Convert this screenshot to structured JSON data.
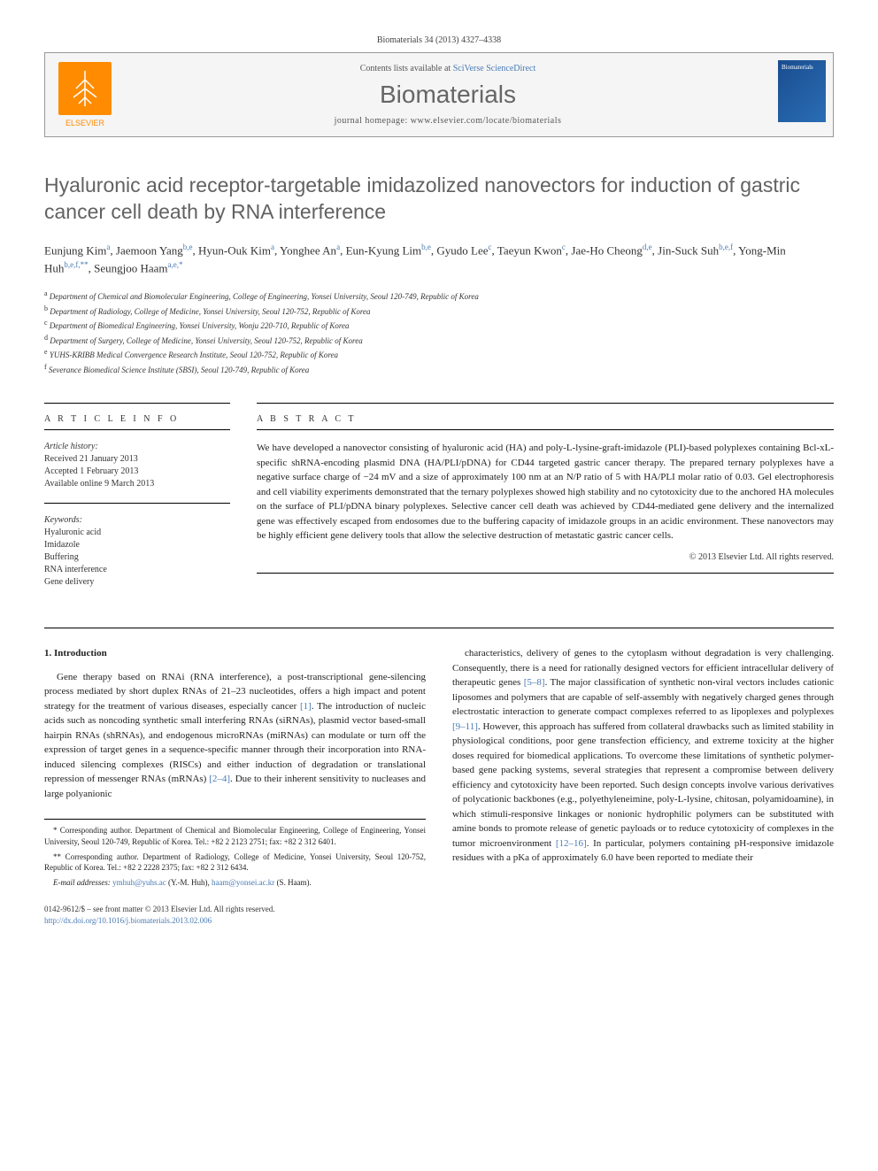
{
  "citation": "Biomaterials 34 (2013) 4327–4338",
  "header": {
    "contents_prefix": "Contents lists available at ",
    "contents_link": "SciVerse ScienceDirect",
    "journal": "Biomaterials",
    "homepage_prefix": "journal homepage: ",
    "homepage": "www.elsevier.com/locate/biomaterials",
    "elsevier": "ELSEVIER",
    "thumb_label": "Biomaterials"
  },
  "title": "Hyaluronic acid receptor-targetable imidazolized nanovectors for induction of gastric cancer cell death by RNA interference",
  "authors_html": "Eunjung Kim<sup>a</sup>, Jaemoon Yang<sup>b,e</sup>, Hyun-Ouk Kim<sup>a</sup>, Yonghee An<sup>a</sup>, Eun-Kyung Lim<sup>b,e</sup>, Gyudo Lee<sup>c</sup>, Taeyun Kwon<sup>c</sup>, Jae-Ho Cheong<sup>d,e</sup>, Jin-Suck Suh<sup>b,e,f</sup>, Yong-Min Huh<sup>b,e,f,**</sup>, Seungjoo Haam<sup>a,e,*</sup>",
  "affiliations": [
    {
      "sup": "a",
      "text": "Department of Chemical and Biomolecular Engineering, College of Engineering, Yonsei University, Seoul 120-749, Republic of Korea"
    },
    {
      "sup": "b",
      "text": "Department of Radiology, College of Medicine, Yonsei University, Seoul 120-752, Republic of Korea"
    },
    {
      "sup": "c",
      "text": "Department of Biomedical Engineering, Yonsei University, Wonju 220-710, Republic of Korea"
    },
    {
      "sup": "d",
      "text": "Department of Surgery, College of Medicine, Yonsei University, Seoul 120-752, Republic of Korea"
    },
    {
      "sup": "e",
      "text": "YUHS-KRIBB Medical Convergence Research Institute, Seoul 120-752, Republic of Korea"
    },
    {
      "sup": "f",
      "text": "Severance Biomedical Science Institute (SBSI), Seoul 120-749, Republic of Korea"
    }
  ],
  "article_info": {
    "heading": "A R T I C L E   I N F O",
    "history_label": "Article history:",
    "received": "Received 21 January 2013",
    "accepted": "Accepted 1 February 2013",
    "online": "Available online 9 March 2013",
    "keywords_label": "Keywords:",
    "keywords": [
      "Hyaluronic acid",
      "Imidazole",
      "Buffering",
      "RNA interference",
      "Gene delivery"
    ]
  },
  "abstract": {
    "heading": "A B S T R A C T",
    "text": "We have developed a nanovector consisting of hyaluronic acid (HA) and poly-L-lysine-graft-imidazole (PLI)-based polyplexes containing Bcl-xL-specific shRNA-encoding plasmid DNA (HA/PLI/pDNA) for CD44 targeted gastric cancer therapy. The prepared ternary polyplexes have a negative surface charge of −24 mV and a size of approximately 100 nm at an N/P ratio of 5 with HA/PLI molar ratio of 0.03. Gel electrophoresis and cell viability experiments demonstrated that the ternary polyplexes showed high stability and no cytotoxicity due to the anchored HA molecules on the surface of PLI/pDNA binary polyplexes. Selective cancer cell death was achieved by CD44-mediated gene delivery and the internalized gene was effectively escaped from endosomes due to the buffering capacity of imidazole groups in an acidic environment. These nanovectors may be highly efficient gene delivery tools that allow the selective destruction of metastatic gastric cancer cells.",
    "copyright": "© 2013 Elsevier Ltd. All rights reserved."
  },
  "body": {
    "section_num": "1.",
    "section_title": "Introduction",
    "col1": "Gene therapy based on RNAi (RNA interference), a post-transcriptional gene-silencing process mediated by short duplex RNAs of 21–23 nucleotides, offers a high impact and potent strategy for the treatment of various diseases, especially cancer [1]. The introduction of nucleic acids such as noncoding synthetic small interfering RNAs (siRNAs), plasmid vector based-small hairpin RNAs (shRNAs), and endogenous microRNAs (miRNAs) can modulate or turn off the expression of target genes in a sequence-specific manner through their incorporation into RNA-induced silencing complexes (RISCs) and either induction of degradation or translational repression of messenger RNAs (mRNAs) [2–4]. Due to their inherent sensitivity to nucleases and large polyanionic",
    "col2": "characteristics, delivery of genes to the cytoplasm without degradation is very challenging. Consequently, there is a need for rationally designed vectors for efficient intracellular delivery of therapeutic genes [5–8]. The major classification of synthetic non-viral vectors includes cationic liposomes and polymers that are capable of self-assembly with negatively charged genes through electrostatic interaction to generate compact complexes referred to as lipoplexes and polyplexes [9–11]. However, this approach has suffered from collateral drawbacks such as limited stability in physiological conditions, poor gene transfection efficiency, and extreme toxicity at the higher doses required for biomedical applications. To overcome these limitations of synthetic polymer-based gene packing systems, several strategies that represent a compromise between delivery efficiency and cytotoxicity have been reported. Such design concepts involve various derivatives of polycationic backbones (e.g., polyethyleneimine, poly-L-lysine, chitosan, polyamidoamine), in which stimuli-responsive linkages or nonionic hydrophilic polymers can be substituted with amine bonds to promote release of genetic payloads or to reduce cytotoxicity of complexes in the tumor microenvironment [12–16]. In particular, polymers containing pH-responsive imidazole residues with a pKa of approximately 6.0 have been reported to mediate their"
  },
  "footnotes": {
    "corr1": "* Corresponding author. Department of Chemical and Biomolecular Engineering, College of Engineering, Yonsei University, Seoul 120-749, Republic of Korea. Tel.: +82 2 2123 2751; fax: +82 2 312 6401.",
    "corr2": "** Corresponding author. Department of Radiology, College of Medicine, Yonsei University, Seoul 120-752, Republic of Korea. Tel.: +82 2 2228 2375; fax: +82 2 312 6434.",
    "email_label": "E-mail addresses: ",
    "email1": "ymhuh@yuhs.ac",
    "email1_name": " (Y.-M. Huh), ",
    "email2": "haam@yonsei.ac.kr",
    "email2_name": " (S. Haam)."
  },
  "footer": {
    "issn": "0142-9612/$ – see front matter © 2013 Elsevier Ltd. All rights reserved.",
    "doi": "http://dx.doi.org/10.1016/j.biomaterials.2013.02.006"
  },
  "refs": {
    "r1": "[1]",
    "r24": "[2–4]",
    "r58": "[5–8]",
    "r911": "[9–11]",
    "r1216": "[12–16]"
  }
}
